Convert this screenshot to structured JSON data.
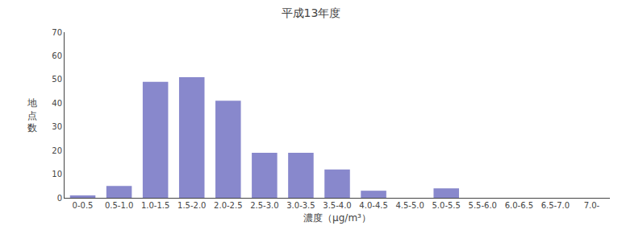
{
  "chart_data": {
    "type": "bar",
    "title": "平成13年度",
    "xlabel": "濃度（μg/m³）",
    "ylabel": "地\n点\n数",
    "categories": [
      "0-0.5",
      "0.5-1.0",
      "1.0-1.5",
      "1.5-2.0",
      "2.0-2.5",
      "2.5-3.0",
      "3.0-3.5",
      "3.5-4.0",
      "4.0-4.5",
      "4.5-5.0",
      "5.0-5.5",
      "5.5-6.0",
      "6.0-6.5",
      "6.5-7.0",
      "7.0-"
    ],
    "values": [
      1,
      5,
      49,
      51,
      41,
      19,
      19,
      12,
      3,
      0,
      4,
      0,
      0,
      0,
      0
    ],
    "color": "#8888cc",
    "ylim": [
      0,
      70
    ],
    "yticks": [
      0,
      10,
      20,
      30,
      40,
      50,
      60,
      70
    ],
    "grid": false
  }
}
